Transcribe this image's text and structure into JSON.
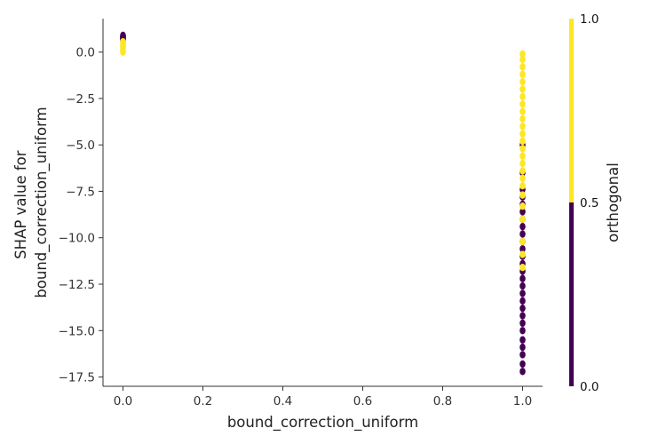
{
  "chart_data": {
    "type": "scatter",
    "title": "",
    "xlabel": "bound_correction_uniform",
    "ylabel_lines": [
      "SHAP value for",
      "bound_correction_uniform"
    ],
    "xlim": [
      -0.05,
      1.05
    ],
    "ylim": [
      -18.0,
      1.8
    ],
    "xticks": [
      {
        "value": 0.0,
        "label": "0.0"
      },
      {
        "value": 0.2,
        "label": "0.2"
      },
      {
        "value": 0.4,
        "label": "0.4"
      },
      {
        "value": 0.6,
        "label": "0.6"
      },
      {
        "value": 0.8,
        "label": "0.8"
      },
      {
        "value": 1.0,
        "label": "1.0"
      }
    ],
    "yticks": [
      {
        "value": 0.0,
        "label": "0.0"
      },
      {
        "value": -2.5,
        "label": "−2.5"
      },
      {
        "value": -5.0,
        "label": "−5.0"
      },
      {
        "value": -7.5,
        "label": "−7.5"
      },
      {
        "value": -10.0,
        "label": "−10.0"
      },
      {
        "value": -12.5,
        "label": "−12.5"
      },
      {
        "value": -15.0,
        "label": "−15.0"
      },
      {
        "value": -17.5,
        "label": "−17.5"
      }
    ],
    "grid": false,
    "colors": {
      "orthogonal_0": "#440154",
      "orthogonal_1": "#fde725"
    },
    "series": [
      {
        "color_value": 0,
        "x": [
          0,
          0,
          0,
          0,
          0,
          0,
          1,
          1,
          1,
          1,
          1,
          1,
          1,
          1,
          1,
          1,
          1,
          1,
          1,
          1,
          1,
          1,
          1,
          1,
          1,
          1,
          1,
          1,
          1,
          1,
          1,
          1,
          1
        ],
        "y": [
          0.9,
          0.85,
          0.8,
          0.75,
          0.7,
          0.65,
          -17.2,
          -16.8,
          -16.3,
          -15.9,
          -15.5,
          -15.0,
          -14.6,
          -14.2,
          -13.8,
          -13.4,
          -13.0,
          -12.6,
          -12.2,
          -11.8,
          -11.4,
          -11.0,
          -10.6,
          -10.2,
          -9.8,
          -9.4,
          -9.0,
          -8.6,
          -8.2,
          -7.8,
          -7.4,
          -6.5,
          -5.0
        ]
      },
      {
        "color_value": 1,
        "x": [
          0,
          0,
          0,
          0,
          0,
          0,
          1,
          1,
          1,
          1,
          1,
          1,
          1,
          1,
          1,
          1,
          1,
          1,
          1,
          1,
          1,
          1,
          1,
          1,
          1,
          1,
          1,
          1,
          1,
          1,
          1
        ],
        "y": [
          0.55,
          0.45,
          0.35,
          0.25,
          0.1,
          0.0,
          -0.1,
          -0.4,
          -0.8,
          -1.2,
          -1.6,
          -2.0,
          -2.4,
          -2.8,
          -3.2,
          -3.6,
          -4.0,
          -4.4,
          -4.8,
          -5.2,
          -5.6,
          -6.0,
          -6.4,
          -6.8,
          -7.2,
          -7.7,
          -8.3,
          -9.0,
          -10.2,
          -10.9,
          -11.6
        ]
      }
    ],
    "colorbar": {
      "label": "orthogonal",
      "range": [
        0.0,
        1.0
      ],
      "ticks": [
        {
          "value": 0.0,
          "label": "0.0"
        },
        {
          "value": 0.5,
          "label": "0.5"
        },
        {
          "value": 1.0,
          "label": "1.0"
        }
      ],
      "split": 0.5
    }
  }
}
